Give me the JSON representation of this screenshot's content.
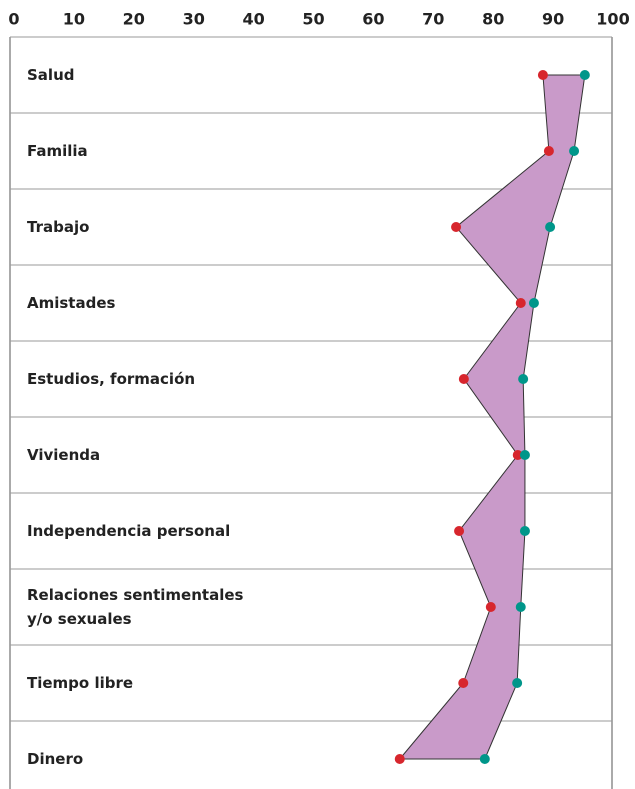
{
  "chart_data": {
    "type": "dotrange",
    "categories": [
      "Salud",
      "Familia",
      "Trabajo",
      "Amistades",
      "Estudios, formación",
      "Vivienda",
      "Independencia personal",
      "Relaciones sentimentales\ny/o sexuales",
      "Tiempo libre",
      "Dinero"
    ],
    "series": [
      {
        "color": "#d7262d",
        "values": [
          88.3,
          89.3,
          73.8,
          84.6,
          75.1,
          84.1,
          74.3,
          79.6,
          75,
          64.4
        ]
      },
      {
        "color": "#00968a",
        "values": [
          95.3,
          93.5,
          89.5,
          86.8,
          85,
          85.3,
          85.3,
          84.6,
          84,
          78.6
        ]
      }
    ],
    "fill_color": "#c99ac9",
    "xlim": [
      0,
      100
    ],
    "xticks": [
      0,
      10,
      20,
      30,
      40,
      50,
      60,
      70,
      80,
      90,
      100
    ]
  }
}
